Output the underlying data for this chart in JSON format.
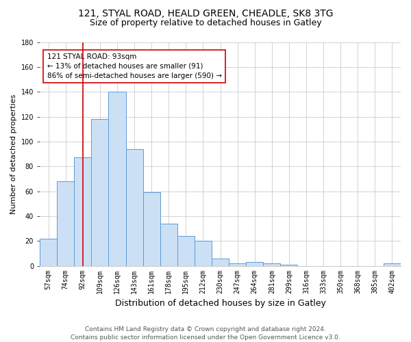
{
  "title1": "121, STYAL ROAD, HEALD GREEN, CHEADLE, SK8 3TG",
  "title2": "Size of property relative to detached houses in Gatley",
  "xlabel": "Distribution of detached houses by size in Gatley",
  "ylabel": "Number of detached properties",
  "footer1": "Contains HM Land Registry data © Crown copyright and database right 2024.",
  "footer2": "Contains public sector information licensed under the Open Government Licence v3.0.",
  "annotation_line1": "121 STYAL ROAD: 93sqm",
  "annotation_line2": "← 13% of detached houses are smaller (91)",
  "annotation_line3": "86% of semi-detached houses are larger (590) →",
  "categories": [
    "57sqm",
    "74sqm",
    "92sqm",
    "109sqm",
    "126sqm",
    "143sqm",
    "161sqm",
    "178sqm",
    "195sqm",
    "212sqm",
    "230sqm",
    "247sqm",
    "264sqm",
    "281sqm",
    "299sqm",
    "316sqm",
    "333sqm",
    "350sqm",
    "368sqm",
    "385sqm",
    "402sqm"
  ],
  "values": [
    22,
    68,
    87,
    118,
    140,
    94,
    59,
    34,
    24,
    20,
    6,
    2,
    3,
    2,
    1,
    0,
    0,
    0,
    0,
    0,
    2
  ],
  "bar_color": "#cce0f5",
  "bar_edge_color": "#5b9bd5",
  "vline_color": "#cc0000",
  "vline_x": 2,
  "ylim": [
    0,
    180
  ],
  "yticks": [
    0,
    20,
    40,
    60,
    80,
    100,
    120,
    140,
    160,
    180
  ],
  "grid_color": "#cccccc",
  "background_color": "#ffffff",
  "annotation_box_color": "#cc0000",
  "title_fontsize": 10,
  "subtitle_fontsize": 9,
  "axis_label_fontsize": 8,
  "tick_fontsize": 7,
  "annotation_fontsize": 7.5,
  "footer_fontsize": 6.5
}
